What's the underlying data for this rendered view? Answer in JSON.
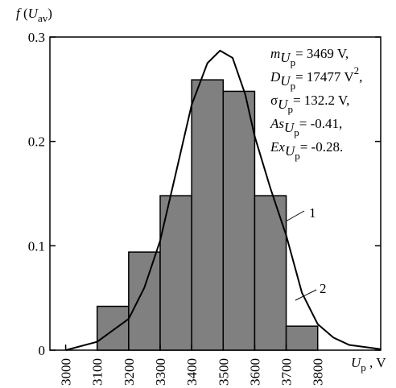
{
  "chart_data": {
    "type": "histogram",
    "bins": [
      3100,
      3200,
      3300,
      3400,
      3500,
      3600,
      3700,
      3800
    ],
    "values": [
      0.042,
      0.094,
      0.148,
      0.259,
      0.248,
      0.148,
      0.023
    ],
    "color": "#808080",
    "curve": {
      "x": [
        3000,
        3100,
        3200,
        3250,
        3300,
        3350,
        3400,
        3450,
        3490,
        3530,
        3570,
        3600,
        3650,
        3700,
        3750,
        3800,
        3850,
        3900,
        4000
      ],
      "y": [
        0,
        0.008,
        0.03,
        0.06,
        0.105,
        0.17,
        0.235,
        0.275,
        0.287,
        0.28,
        0.245,
        0.205,
        0.155,
        0.11,
        0.055,
        0.025,
        0.012,
        0.005,
        0.001
      ],
      "color": "#000000"
    },
    "xlim": [
      2950,
      4000
    ],
    "ylim": [
      0,
      0.3
    ],
    "xticks": [
      3000,
      3100,
      3200,
      3300,
      3400,
      3500,
      3600,
      3700,
      3800
    ],
    "yticks": [
      0,
      0.1,
      0.2,
      0.3
    ],
    "ylabel": [
      [
        "f",
        "i"
      ],
      [
        " (",
        "n"
      ],
      [
        "U",
        "i"
      ],
      [
        "av",
        "sub"
      ],
      [
        ")",
        "n"
      ]
    ],
    "xlabel": [
      [
        "U",
        "i"
      ],
      [
        "p",
        "sub"
      ],
      [
        " , V",
        "n"
      ]
    ],
    "stats": [
      [
        [
          "m",
          "i"
        ],
        [
          "U",
          "isub"
        ],
        [
          "p",
          "subsub"
        ],
        [
          "= 3469 V,",
          "back"
        ]
      ],
      [
        [
          "D",
          "i"
        ],
        [
          "U",
          "isub"
        ],
        [
          "p",
          "subsub"
        ],
        [
          "= 17477 V",
          "back"
        ],
        [
          "2",
          "sup"
        ],
        [
          ",",
          "back"
        ]
      ],
      [
        [
          "σ",
          "n"
        ],
        [
          "U",
          "isub"
        ],
        [
          "p",
          "subsub"
        ],
        [
          "= 132.2 V,",
          "back"
        ]
      ],
      [
        [
          "As",
          "i"
        ],
        [
          "U",
          "isub"
        ],
        [
          "p",
          "subsub"
        ],
        [
          "= -0.41,",
          "back"
        ]
      ],
      [
        [
          "Ex",
          "i"
        ],
        [
          "U",
          "isub"
        ],
        [
          "p",
          "subsub"
        ],
        [
          "= -0.28.",
          "back"
        ]
      ]
    ],
    "annotations": [
      "1",
      "2"
    ]
  }
}
